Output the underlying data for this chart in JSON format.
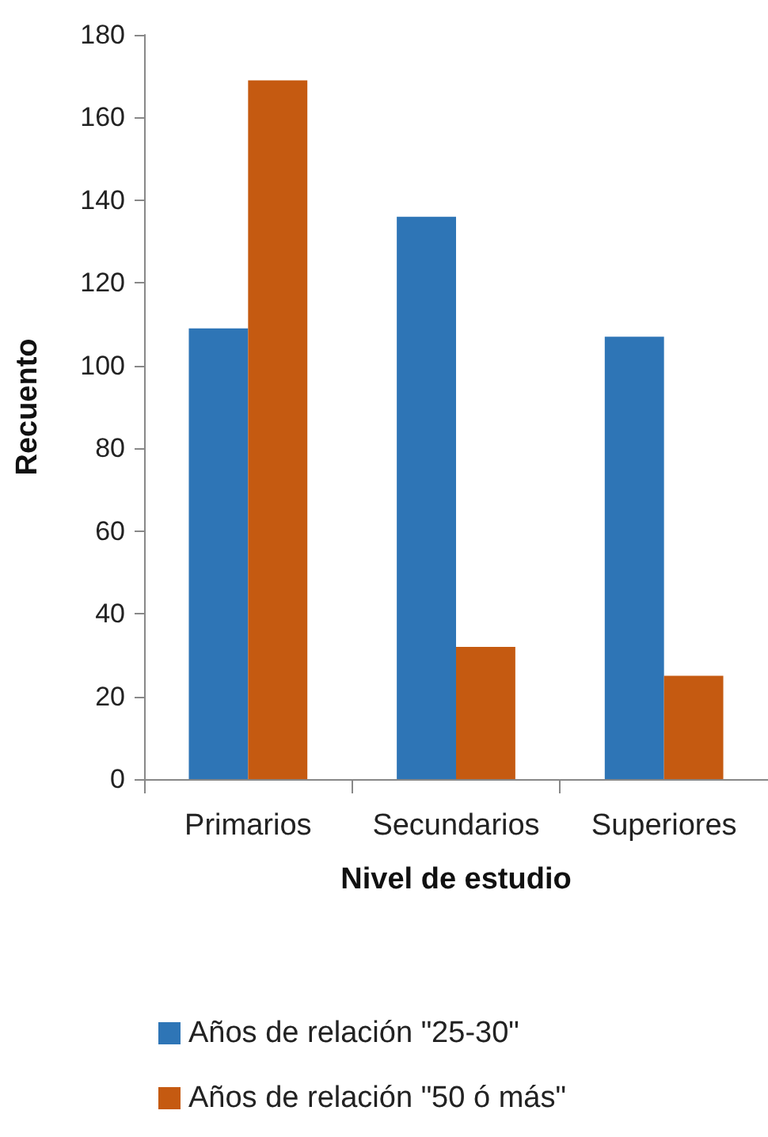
{
  "chart_data": {
    "type": "bar",
    "xlabel": "Nivel de estudio",
    "ylabel": "Recuento",
    "categories": [
      "Primarios",
      "Secundarios",
      "Superiores"
    ],
    "series": [
      {
        "name": "Años de relación \"25-30\"",
        "color": "#2e75b6",
        "values": [
          109,
          136,
          107
        ]
      },
      {
        "name": "Años de relación \"50 ó más\"",
        "color": "#c55a11",
        "values": [
          169,
          32,
          25
        ]
      }
    ],
    "ylim": [
      0,
      180
    ],
    "yticks": [
      0,
      20,
      40,
      60,
      80,
      100,
      120,
      140,
      160,
      180
    ],
    "grid": false,
    "legend": "bottom"
  }
}
